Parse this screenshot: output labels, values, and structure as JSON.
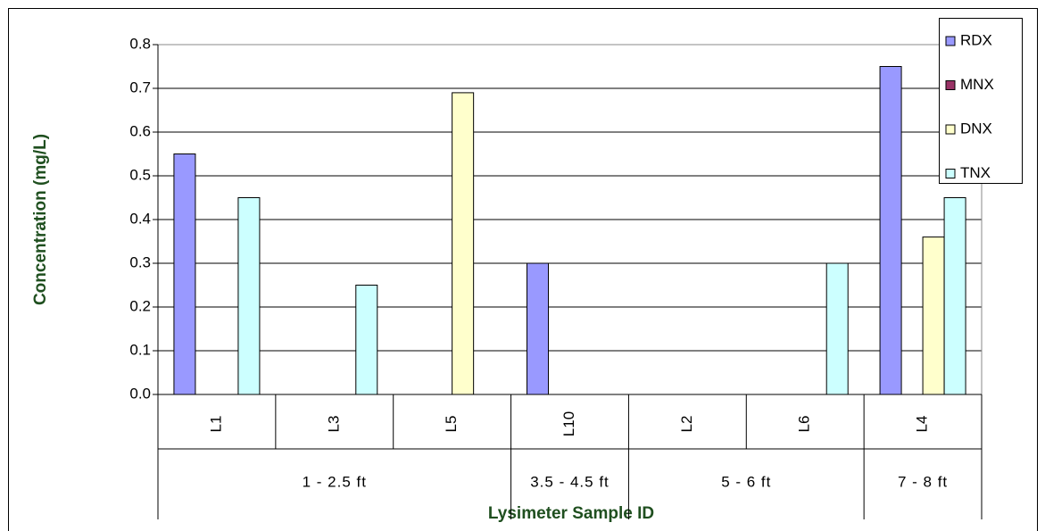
{
  "chart_data": {
    "type": "bar",
    "xlabel": "Lysimeter Sample ID",
    "ylabel": "Concentration (mg/L)",
    "categories": [
      "L1",
      "L3",
      "L5",
      "L10",
      "L2",
      "L6",
      "L4"
    ],
    "groups": [
      {
        "label": "1 - 2.5 ft",
        "size": 3
      },
      {
        "label": "3.5 - 4.5 ft",
        "size": 1
      },
      {
        "label": "5 - 6 ft",
        "size": 2
      },
      {
        "label": "7 - 8 ft",
        "size": 1
      }
    ],
    "series": [
      {
        "name": "RDX",
        "color": "#9999ff",
        "values": [
          0.55,
          0,
          0,
          0.3,
          0,
          0,
          0.75
        ]
      },
      {
        "name": "MNX",
        "color": "#993366",
        "values": [
          0,
          0,
          0,
          0,
          0,
          0,
          0
        ]
      },
      {
        "name": "DNX",
        "color": "#ffffcc",
        "values": [
          0,
          0,
          0.69,
          0,
          0,
          0,
          0.36
        ]
      },
      {
        "name": "TNX",
        "color": "#ccffff",
        "values": [
          0.45,
          0.25,
          0,
          0,
          0,
          0.3,
          0.45
        ]
      }
    ],
    "ylim": [
      0,
      0.8
    ],
    "yticks": [
      {
        "value": 0,
        "label": "0.0"
      },
      0.1,
      0.2,
      0.3,
      0.4,
      0.5,
      0.6,
      0.7,
      0.8
    ],
    "grid": true,
    "legend": "right"
  }
}
